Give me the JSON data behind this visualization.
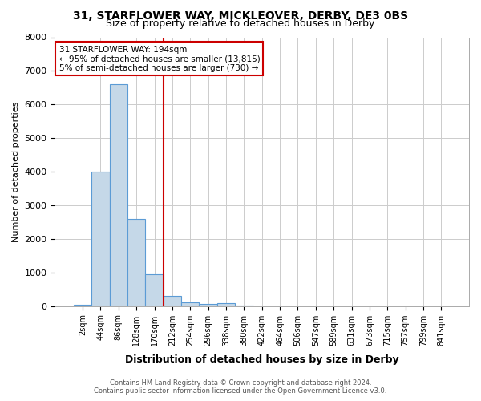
{
  "title_line1": "31, STARFLOWER WAY, MICKLEOVER, DERBY, DE3 0BS",
  "title_line2": "Size of property relative to detached houses in Derby",
  "xlabel": "Distribution of detached houses by size in Derby",
  "ylabel": "Number of detached properties",
  "bin_labels": [
    "2sqm",
    "44sqm",
    "86sqm",
    "128sqm",
    "170sqm",
    "212sqm",
    "254sqm",
    "296sqm",
    "338sqm",
    "380sqm",
    "422sqm",
    "464sqm",
    "506sqm",
    "547sqm",
    "589sqm",
    "631sqm",
    "673sqm",
    "715sqm",
    "757sqm",
    "799sqm",
    "841sqm"
  ],
  "bar_heights": [
    50,
    4000,
    6600,
    2600,
    950,
    300,
    110,
    55,
    80,
    5,
    0,
    0,
    0,
    0,
    0,
    0,
    0,
    0,
    0,
    0,
    0
  ],
  "bar_color": "#c5d8e8",
  "bar_edge_color": "#5b9bd5",
  "property_line_x": 4.5,
  "annotation_text_line1": "31 STARFLOWER WAY: 194sqm",
  "annotation_text_line2": "← 95% of detached houses are smaller (13,815)",
  "annotation_text_line3": "5% of semi-detached houses are larger (730) →",
  "annotation_box_color": "#ffffff",
  "annotation_box_edge": "#cc0000",
  "red_line_color": "#cc0000",
  "ylim": [
    0,
    8000
  ],
  "yticks": [
    0,
    1000,
    2000,
    3000,
    4000,
    5000,
    6000,
    7000,
    8000
  ],
  "footer_line1": "Contains HM Land Registry data © Crown copyright and database right 2024.",
  "footer_line2": "Contains public sector information licensed under the Open Government Licence v3.0.",
  "bg_color": "#ffffff",
  "grid_color": "#cccccc"
}
